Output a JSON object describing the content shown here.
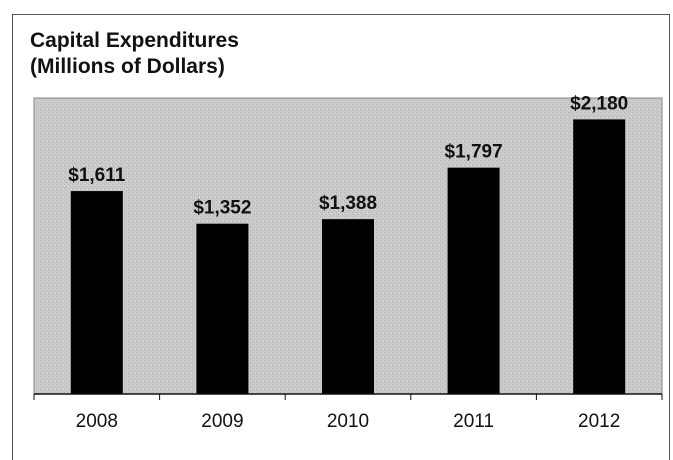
{
  "chart_data": {
    "type": "bar",
    "title_line1": "Capital Expenditures",
    "title_line2": "(Millions of Dollars)",
    "categories": [
      "2008",
      "2009",
      "2010",
      "2011",
      "2012"
    ],
    "values": [
      1611,
      1352,
      1388,
      1797,
      2180
    ],
    "data_labels": [
      "$1,611",
      "$1,352",
      "$1,388",
      "$1,797",
      "$2,180"
    ],
    "xlabel": "",
    "ylabel": "",
    "ylim": [
      0,
      2350
    ],
    "grid": false,
    "legend": "none"
  },
  "colors": {
    "plot_background": "#c8c8c8",
    "bar": "#000000",
    "text": "#111111"
  }
}
